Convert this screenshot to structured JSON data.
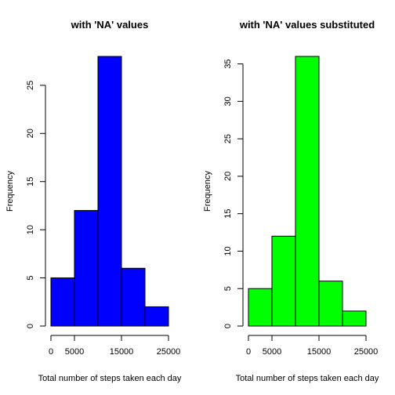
{
  "chart_data": [
    {
      "type": "bar",
      "title": "with 'NA' values",
      "xlabel": "Total number of steps taken each day",
      "ylabel": "Frequency",
      "bins": [
        [
          0,
          5000
        ],
        [
          5000,
          10000
        ],
        [
          10000,
          15000
        ],
        [
          15000,
          20000
        ],
        [
          20000,
          25000
        ]
      ],
      "values": [
        5,
        12,
        28,
        6,
        2
      ],
      "xticks": [
        0,
        5000,
        15000,
        25000
      ],
      "yticks": [
        0,
        5,
        10,
        15,
        20,
        25
      ],
      "xlim": [
        0,
        25000
      ],
      "ylim": [
        0,
        28
      ],
      "bar_color": "#0000ff"
    },
    {
      "type": "bar",
      "title": "with 'NA' values substituted",
      "xlabel": "Total number of steps taken each day",
      "ylabel": "Frequency",
      "bins": [
        [
          0,
          5000
        ],
        [
          5000,
          10000
        ],
        [
          10000,
          15000
        ],
        [
          15000,
          20000
        ],
        [
          20000,
          25000
        ]
      ],
      "values": [
        5,
        12,
        36,
        6,
        2
      ],
      "xticks": [
        0,
        5000,
        15000,
        25000
      ],
      "yticks": [
        0,
        5,
        10,
        15,
        20,
        25,
        30,
        35
      ],
      "xlim": [
        0,
        25000
      ],
      "ylim": [
        0,
        36
      ],
      "bar_color": "#00ff00"
    }
  ]
}
